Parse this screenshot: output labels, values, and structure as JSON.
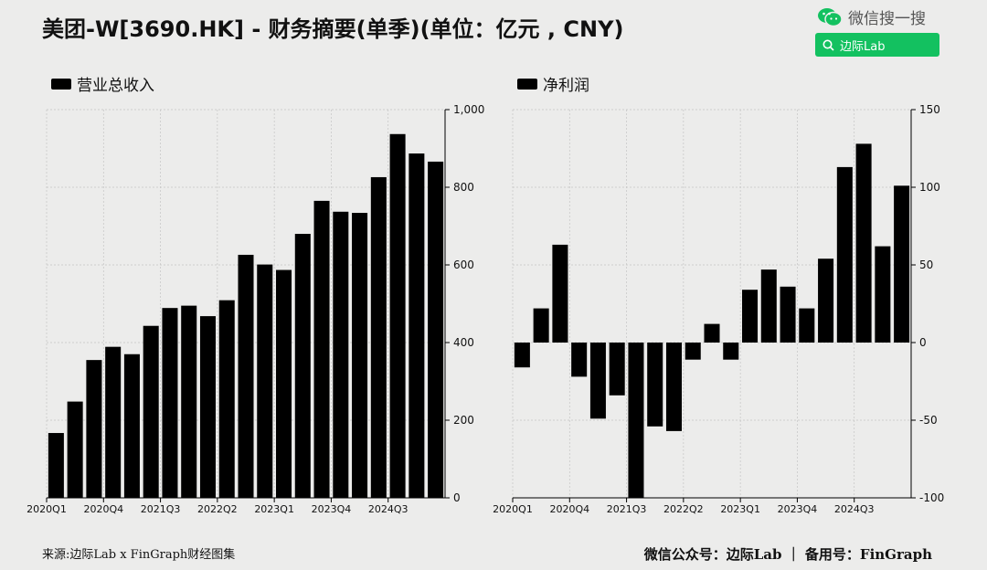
{
  "title": "美团-W[3690.HK] - 财务摘要(单季)(单位：亿元 , CNY)",
  "wechat": {
    "label": "微信搜一搜",
    "search_text": "边际Lab"
  },
  "footer": {
    "source": "来源:边际Lab x FinGraph财经图集",
    "account": "微信公众号：边际Lab ｜ 备用号：FinGraph"
  },
  "colors": {
    "bar": "#000000",
    "background": "#ececeb",
    "search_bg": "#13c160"
  },
  "chart_data": [
    {
      "type": "bar",
      "legend": "营业总收入",
      "categories": [
        "2020Q1",
        "2020Q2",
        "2020Q3",
        "2020Q4",
        "2021Q1",
        "2021Q2",
        "2021Q3",
        "2021Q4",
        "2022Q1",
        "2022Q2",
        "2022Q3",
        "2022Q4",
        "2023Q1",
        "2023Q2",
        "2023Q3",
        "2023Q4",
        "2024Q1",
        "2024Q2",
        "2024Q3",
        "2024Q4",
        "2025Q1"
      ],
      "x_tick_labels": [
        "2020Q1",
        "2020Q4",
        "2021Q3",
        "2022Q2",
        "2023Q1",
        "2023Q4",
        "2024Q3"
      ],
      "y_tick_labels": [
        "0",
        "200",
        "400",
        "600",
        "800",
        "1,000"
      ],
      "values": [
        167,
        248,
        355,
        389,
        370,
        443,
        489,
        495,
        468,
        509,
        626,
        601,
        587,
        680,
        765,
        737,
        734,
        826,
        937,
        887,
        866
      ],
      "ylim": [
        0,
        1000
      ],
      "yticks": [
        0,
        200,
        400,
        600,
        800,
        1000
      ],
      "y_axis_side": "right",
      "grid": true
    },
    {
      "type": "bar",
      "legend": "净利润",
      "categories": [
        "2020Q1",
        "2020Q2",
        "2020Q3",
        "2020Q4",
        "2021Q1",
        "2021Q2",
        "2021Q3",
        "2021Q4",
        "2022Q1",
        "2022Q2",
        "2022Q3",
        "2022Q4",
        "2023Q1",
        "2023Q2",
        "2023Q3",
        "2023Q4",
        "2024Q1",
        "2024Q2",
        "2024Q3",
        "2024Q4",
        "2025Q1"
      ],
      "x_tick_labels": [
        "2020Q1",
        "2020Q4",
        "2021Q3",
        "2022Q2",
        "2023Q1",
        "2023Q4",
        "2024Q3"
      ],
      "y_tick_labels": [
        "-100",
        "-50",
        "0",
        "50",
        "100",
        "150"
      ],
      "values": [
        -16,
        22,
        63,
        -22,
        -49,
        -34,
        -100,
        -54,
        -57,
        -11,
        12,
        -11,
        34,
        47,
        36,
        22,
        54,
        113,
        128,
        62,
        101
      ],
      "ylim": [
        -100,
        150
      ],
      "yticks": [
        -100,
        -50,
        0,
        50,
        100,
        150
      ],
      "y_axis_side": "right",
      "grid": true
    }
  ]
}
